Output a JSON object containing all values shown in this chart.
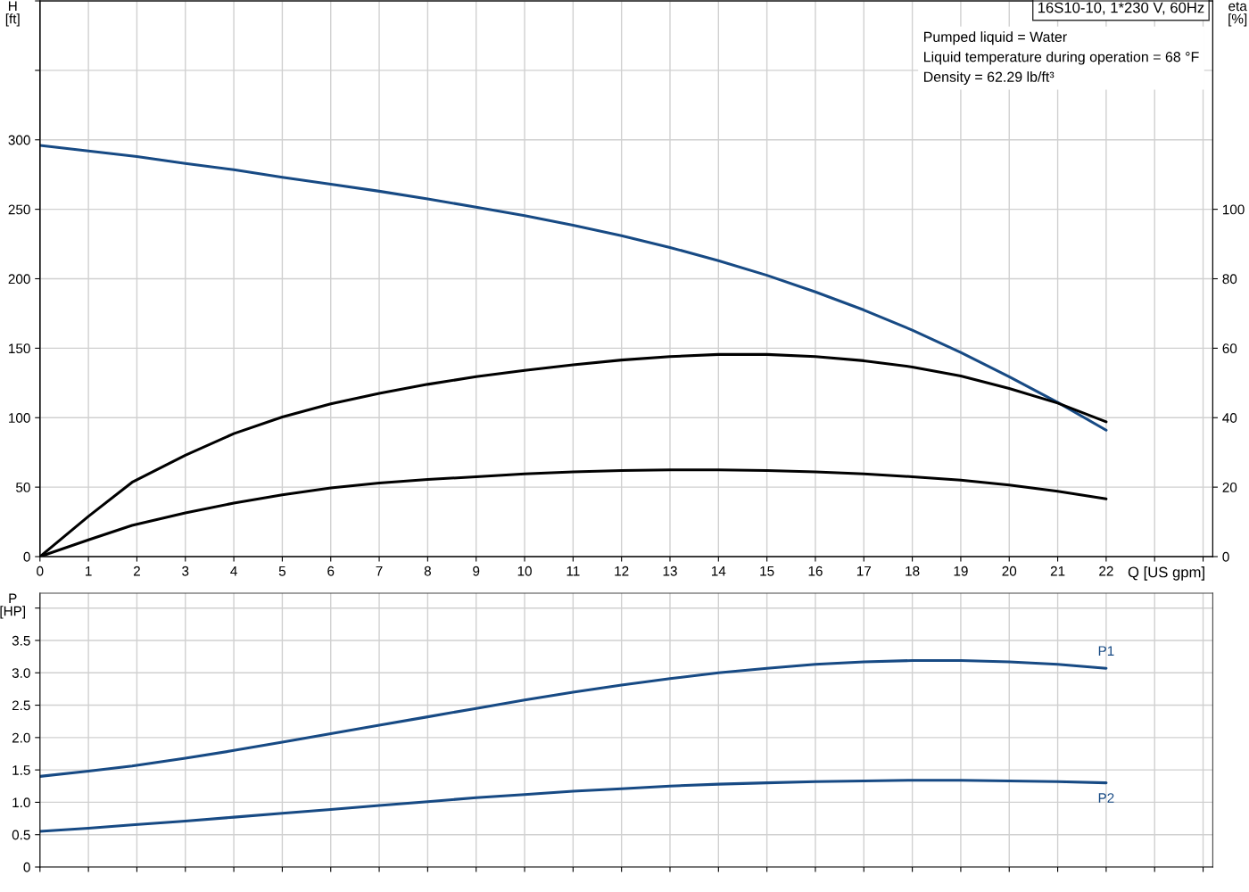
{
  "chart_data": [
    {
      "type": "line",
      "title": "16S10-10, 1*230 V, 60Hz",
      "xlabel": "Q [US gpm]",
      "ylabel": "H\n[ft]",
      "y2label": "eta\n[%]",
      "annotations": [
        "Pumped liquid = Water",
        "Liquid temperature during operation = 68 °F",
        "Density = 62.29 lb/ft³"
      ],
      "xlim": [
        0,
        24.2
      ],
      "xticks": [
        0,
        1,
        2,
        3,
        4,
        5,
        6,
        7,
        8,
        9,
        10,
        11,
        12,
        13,
        14,
        15,
        16,
        17,
        18,
        19,
        20,
        21,
        22,
        {
          "value": 23,
          "label": null
        },
        {
          "value": 24,
          "label": null
        }
      ],
      "ylim": [
        0,
        400
      ],
      "yticks": [
        0,
        50,
        100,
        150,
        200,
        250,
        300,
        {
          "value": 350,
          "label": null
        },
        {
          "value": 400,
          "label": null
        }
      ],
      "y2lim": [
        0,
        160
      ],
      "y2ticks": [
        0,
        20,
        40,
        60,
        80,
        100
      ],
      "grid": true,
      "legend": false,
      "marker": "none",
      "line_style": "solid",
      "series": [
        {
          "color": "#174a84",
          "x": [
            0,
            1,
            2,
            3,
            4,
            5,
            6,
            7,
            8,
            9,
            10,
            11,
            12,
            13,
            14,
            15,
            16,
            17,
            18,
            19,
            20,
            21,
            22
          ],
          "values": [
            296,
            292,
            288,
            283,
            278.5,
            273,
            268,
            263,
            257.5,
            251.5,
            245.5,
            238.5,
            231,
            222.5,
            213,
            202.5,
            190.5,
            177.5,
            163,
            147,
            129.5,
            111,
            91
          ]
        },
        {
          "color": "#000000",
          "axis": "y2",
          "x": [
            0,
            1,
            1.9,
            3,
            4,
            5,
            6,
            7,
            8,
            9,
            10,
            11,
            12,
            13,
            14,
            15,
            16,
            17,
            18,
            19,
            20,
            21,
            22
          ],
          "values": [
            0,
            11.6,
            21.4,
            29.2,
            35.4,
            40.2,
            44,
            47,
            49.6,
            51.8,
            53.6,
            55.2,
            56.6,
            57.6,
            58.2,
            58.2,
            57.6,
            56.4,
            54.6,
            52,
            48.4,
            44.2,
            38.8
          ]
        },
        {
          "color": "#000000",
          "axis": "y2",
          "x": [
            0,
            1,
            1.9,
            3,
            4,
            5,
            6,
            7,
            8,
            9,
            10,
            11,
            12,
            13,
            14,
            15,
            16,
            17,
            18,
            19,
            20,
            21,
            22
          ],
          "values": [
            0,
            4.8,
            9,
            12.6,
            15.4,
            17.8,
            19.8,
            21.2,
            22.2,
            23,
            23.8,
            24.4,
            24.8,
            25,
            25,
            24.8,
            24.4,
            23.8,
            23,
            22,
            20.6,
            18.8,
            16.6
          ]
        }
      ]
    },
    {
      "type": "line",
      "ylabel": "P\n[HP]",
      "xlim": [
        0,
        24.2
      ],
      "xticks": [
        0,
        1,
        2,
        3,
        4,
        5,
        6,
        7,
        8,
        9,
        10,
        11,
        12,
        13,
        14,
        15,
        16,
        17,
        18,
        19,
        20,
        21,
        22,
        23,
        24
      ],
      "ylim": [
        0,
        4.23
      ],
      "yticks": [
        0,
        0.5,
        {
          "value": 1,
          "label": "1.0"
        },
        1.5,
        {
          "value": 2,
          "label": "2.0"
        },
        2.5,
        {
          "value": 3,
          "label": "3.0"
        },
        3.5,
        {
          "value": 4,
          "label": null
        }
      ],
      "tick_labels": "y",
      "grid": true,
      "legend": false,
      "marker": "none",
      "line_style": "solid",
      "series": [
        {
          "name": "P1",
          "color": "#174a84",
          "x": [
            0,
            1,
            1.9,
            3,
            4,
            5,
            6,
            7,
            8,
            9,
            10,
            11,
            12,
            13,
            14,
            15,
            16,
            17,
            18,
            19,
            20,
            21,
            22
          ],
          "values": [
            1.4,
            1.48,
            1.56,
            1.68,
            1.8,
            1.93,
            2.06,
            2.19,
            2.32,
            2.45,
            2.58,
            2.7,
            2.81,
            2.91,
            3.0,
            3.07,
            3.13,
            3.17,
            3.19,
            3.19,
            3.17,
            3.13,
            3.07
          ]
        },
        {
          "name": "P2",
          "color": "#174a84",
          "x": [
            0,
            1,
            1.9,
            3,
            4,
            5,
            6,
            7,
            8,
            9,
            10,
            11,
            12,
            13,
            14,
            15,
            16,
            17,
            18,
            19,
            20,
            21,
            22
          ],
          "values": [
            0.55,
            0.6,
            0.65,
            0.71,
            0.77,
            0.83,
            0.89,
            0.95,
            1.01,
            1.07,
            1.12,
            1.17,
            1.21,
            1.25,
            1.28,
            1.3,
            1.32,
            1.33,
            1.34,
            1.34,
            1.33,
            1.32,
            1.3
          ]
        }
      ]
    }
  ]
}
